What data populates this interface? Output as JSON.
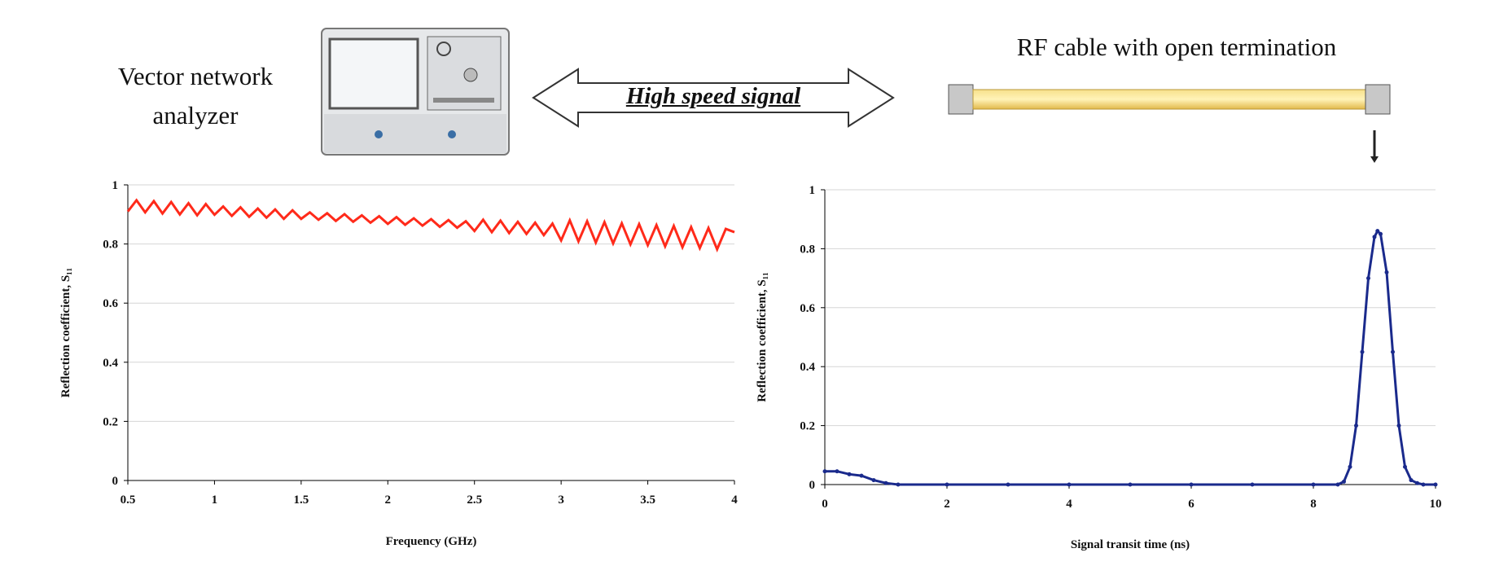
{
  "diagram": {
    "instrument_label": "Vector network analyzer",
    "signal_label": "High speed signal",
    "cable_label": "RF cable with open termination"
  },
  "chart_data": [
    {
      "type": "line",
      "x_label": "Frequency (GHz)",
      "y_label": "Reflection coefficient, S₁₁",
      "x": [
        0.5,
        0.55,
        0.6,
        0.65,
        0.7,
        0.75,
        0.8,
        0.85,
        0.9,
        0.95,
        1.0,
        1.05,
        1.1,
        1.15,
        1.2,
        1.25,
        1.3,
        1.35,
        1.4,
        1.45,
        1.5,
        1.55,
        1.6,
        1.65,
        1.7,
        1.75,
        1.8,
        1.85,
        1.9,
        1.95,
        2.0,
        2.05,
        2.1,
        2.15,
        2.2,
        2.25,
        2.3,
        2.35,
        2.4,
        2.45,
        2.5,
        2.55,
        2.6,
        2.65,
        2.7,
        2.75,
        2.8,
        2.85,
        2.9,
        2.95,
        3.0,
        3.05,
        3.1,
        3.15,
        3.2,
        3.25,
        3.3,
        3.35,
        3.4,
        3.45,
        3.5,
        3.55,
        3.6,
        3.65,
        3.7,
        3.75,
        3.8,
        3.85,
        3.9,
        3.95,
        4.0
      ],
      "series": [
        {
          "color": "#ff2a1a",
          "values": [
            0.91,
            0.948,
            0.907,
            0.945,
            0.903,
            0.942,
            0.9,
            0.938,
            0.897,
            0.935,
            0.899,
            0.927,
            0.895,
            0.924,
            0.892,
            0.92,
            0.889,
            0.917,
            0.885,
            0.914,
            0.885,
            0.907,
            0.882,
            0.904,
            0.878,
            0.901,
            0.875,
            0.897,
            0.872,
            0.894,
            0.868,
            0.891,
            0.865,
            0.887,
            0.862,
            0.884,
            0.858,
            0.881,
            0.855,
            0.877,
            0.844,
            0.882,
            0.84,
            0.879,
            0.837,
            0.875,
            0.834,
            0.872,
            0.83,
            0.869,
            0.812,
            0.88,
            0.809,
            0.877,
            0.805,
            0.874,
            0.802,
            0.87,
            0.799,
            0.867,
            0.796,
            0.864,
            0.792,
            0.861,
            0.789,
            0.857,
            0.786,
            0.854,
            0.782,
            0.851,
            0.84
          ]
        }
      ],
      "xlim": [
        0.5,
        4
      ],
      "xticks": [
        0.5,
        1,
        1.5,
        2,
        2.5,
        3,
        3.5,
        4
      ],
      "ylim": [
        0,
        1
      ],
      "yticks": [
        0,
        0.2,
        0.4,
        0.6,
        0.8,
        1
      ],
      "grid": true,
      "markers": false
    },
    {
      "type": "line",
      "x_label": "Signal transit time (ns)",
      "y_label": "Reflection coefficient, S₁₁",
      "x": [
        0,
        0.2,
        0.4,
        0.6,
        0.8,
        1.0,
        1.2,
        2,
        3,
        4,
        5,
        6,
        7,
        8,
        8.4,
        8.5,
        8.6,
        8.7,
        8.8,
        8.9,
        9.0,
        9.05,
        9.1,
        9.2,
        9.3,
        9.4,
        9.5,
        9.6,
        9.7,
        9.8,
        10
      ],
      "series": [
        {
          "color": "#1a2a8c",
          "values": [
            0.045,
            0.045,
            0.035,
            0.03,
            0.015,
            0.005,
            0,
            0,
            0,
            0,
            0,
            0,
            0,
            0,
            0,
            0.01,
            0.06,
            0.2,
            0.45,
            0.7,
            0.84,
            0.86,
            0.85,
            0.72,
            0.45,
            0.2,
            0.06,
            0.015,
            0.005,
            0,
            0
          ]
        }
      ],
      "xlim": [
        0,
        10
      ],
      "xticks": [
        0,
        2,
        4,
        6,
        8,
        10
      ],
      "ylim": [
        0,
        1
      ],
      "yticks": [
        0,
        0.2,
        0.4,
        0.6,
        0.8,
        1
      ],
      "grid": true,
      "markers": true
    }
  ]
}
